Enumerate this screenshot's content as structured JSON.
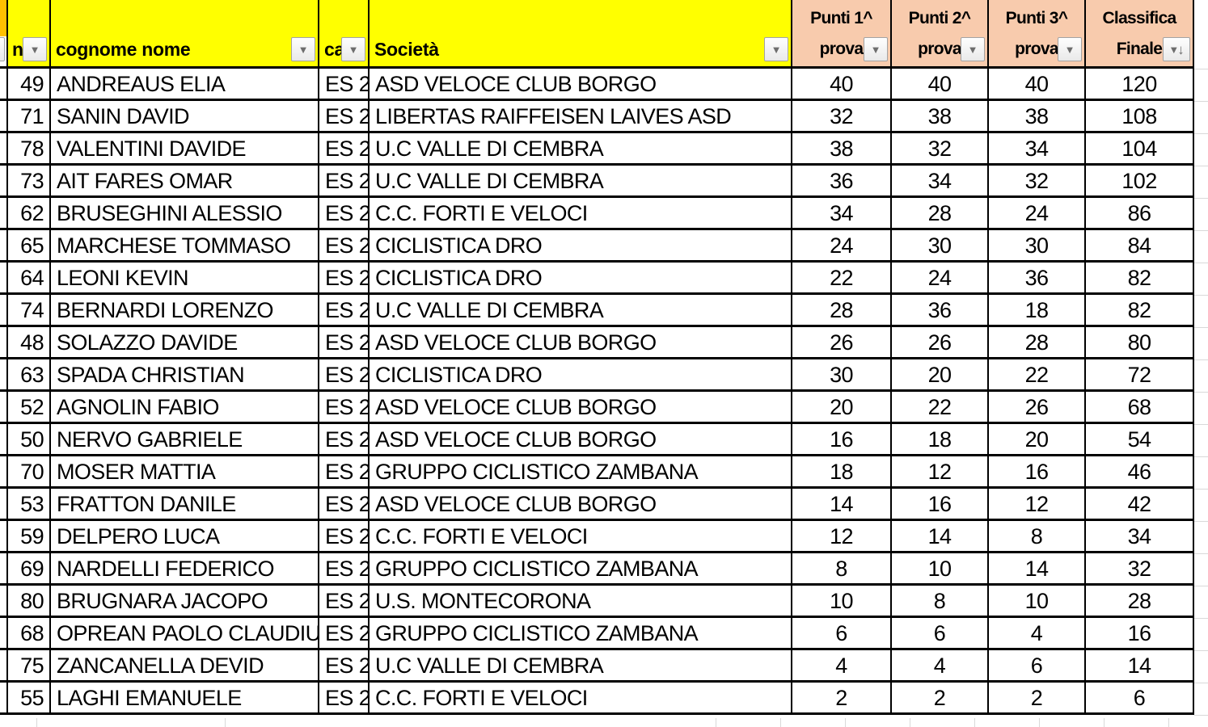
{
  "table": {
    "headers": {
      "n": "n",
      "name": "cognome nome",
      "category": "ca",
      "club": "Società",
      "p1_line1": "Punti 1^",
      "p1_line2": "prova",
      "p2_line1": "Punti 2^",
      "p2_line2": "prova",
      "p3_line1": "Punti 3^",
      "p3_line2": "prova",
      "final_line1": "Classifica",
      "final_line2": "Finale"
    },
    "rows": [
      {
        "n": 49,
        "name": "ANDREAUS ELIA",
        "category": "ES 2",
        "club": "ASD VELOCE CLUB BORGO",
        "p1": 40,
        "p2": 40,
        "p3": 40,
        "total": 120
      },
      {
        "n": 71,
        "name": "SANIN DAVID",
        "category": "ES 2",
        "club": "LIBERTAS RAIFFEISEN LAIVES ASD",
        "p1": 32,
        "p2": 38,
        "p3": 38,
        "total": 108
      },
      {
        "n": 78,
        "name": "VALENTINI DAVIDE",
        "category": "ES 2",
        "club": "U.C VALLE DI CEMBRA",
        "p1": 38,
        "p2": 32,
        "p3": 34,
        "total": 104
      },
      {
        "n": 73,
        "name": "AIT FARES OMAR",
        "category": "ES 2",
        "club": "U.C VALLE DI CEMBRA",
        "p1": 36,
        "p2": 34,
        "p3": 32,
        "total": 102
      },
      {
        "n": 62,
        "name": "BRUSEGHINI ALESSIO",
        "category": "ES 2",
        "club": "C.C. FORTI E VELOCI",
        "p1": 34,
        "p2": 28,
        "p3": 24,
        "total": 86
      },
      {
        "n": 65,
        "name": "MARCHESE TOMMASO",
        "category": "ES 2",
        "club": "CICLISTICA DRO",
        "p1": 24,
        "p2": 30,
        "p3": 30,
        "total": 84
      },
      {
        "n": 64,
        "name": "LEONI KEVIN",
        "category": "ES 2",
        "club": "CICLISTICA DRO",
        "p1": 22,
        "p2": 24,
        "p3": 36,
        "total": 82
      },
      {
        "n": 74,
        "name": "BERNARDI LORENZO",
        "category": "ES 2",
        "club": "U.C VALLE DI CEMBRA",
        "p1": 28,
        "p2": 36,
        "p3": 18,
        "total": 82
      },
      {
        "n": 48,
        "name": "SOLAZZO DAVIDE",
        "category": "ES 2",
        "club": "ASD VELOCE CLUB BORGO",
        "p1": 26,
        "p2": 26,
        "p3": 28,
        "total": 80
      },
      {
        "n": 63,
        "name": "SPADA CHRISTIAN",
        "category": "ES 2",
        "club": "CICLISTICA DRO",
        "p1": 30,
        "p2": 20,
        "p3": 22,
        "total": 72
      },
      {
        "n": 52,
        "name": "AGNOLIN FABIO",
        "category": "ES 2",
        "club": "ASD VELOCE CLUB BORGO",
        "p1": 20,
        "p2": 22,
        "p3": 26,
        "total": 68
      },
      {
        "n": 50,
        "name": "NERVO GABRIELE",
        "category": "ES 2",
        "club": "ASD VELOCE CLUB BORGO",
        "p1": 16,
        "p2": 18,
        "p3": 20,
        "total": 54
      },
      {
        "n": 70,
        "name": "MOSER MATTIA",
        "category": "ES 2",
        "club": "GRUPPO CICLISTICO ZAMBANA",
        "p1": 18,
        "p2": 12,
        "p3": 16,
        "total": 46
      },
      {
        "n": 53,
        "name": "FRATTON DANILE",
        "category": "ES 2",
        "club": "ASD VELOCE CLUB BORGO",
        "p1": 14,
        "p2": 16,
        "p3": 12,
        "total": 42
      },
      {
        "n": 59,
        "name": "DELPERO LUCA",
        "category": "ES 2",
        "club": "C.C. FORTI E VELOCI",
        "p1": 12,
        "p2": 14,
        "p3": 8,
        "total": 34
      },
      {
        "n": 69,
        "name": "NARDELLI FEDERICO",
        "category": "ES 2",
        "club": "GRUPPO CICLISTICO ZAMBANA",
        "p1": 8,
        "p2": 10,
        "p3": 14,
        "total": 32
      },
      {
        "n": 80,
        "name": "BRUGNARA JACOPO",
        "category": "ES 2",
        "club": "U.S. MONTECORONA",
        "p1": 10,
        "p2": 8,
        "p3": 10,
        "total": 28
      },
      {
        "n": 68,
        "name": "OPREAN PAOLO CLAUDIU",
        "category": "ES 2",
        "club": "GRUPPO CICLISTICO ZAMBANA",
        "p1": 6,
        "p2": 6,
        "p3": 4,
        "total": 16
      },
      {
        "n": 75,
        "name": "ZANCANELLA DEVID",
        "category": "ES 2",
        "club": "U.C VALLE DI CEMBRA",
        "p1": 4,
        "p2": 4,
        "p3": 6,
        "total": 14
      },
      {
        "n": 55,
        "name": "LAGHI EMANUELE",
        "category": "ES 2",
        "club": "C.C. FORTI E VELOCI",
        "p1": 2,
        "p2": 2,
        "p3": 2,
        "total": 6
      }
    ]
  },
  "icons": {
    "filter": "▼",
    "sort_descending": "↓"
  },
  "colors": {
    "header_yellow": "#FFFF00",
    "header_peach": "#F8CBAD",
    "header_orange": "#FFC000",
    "cell_border": "#000000",
    "sheet_gridline": "#D9D9D9"
  }
}
